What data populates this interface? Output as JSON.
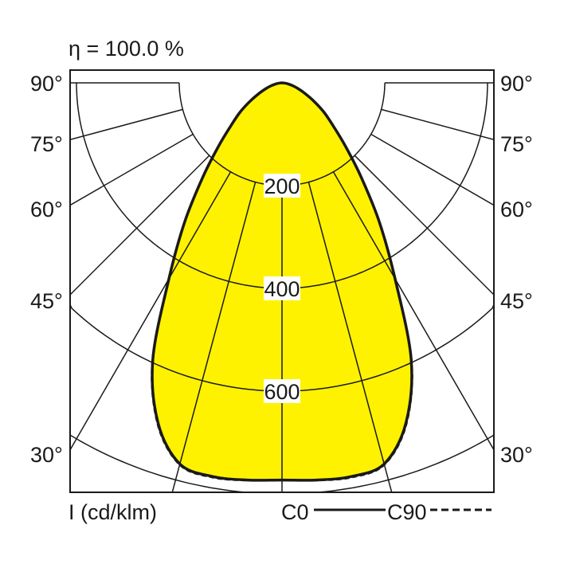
{
  "chart_data": {
    "type": "polar",
    "title": "η = 100.0 %",
    "unit_label": "I (cd/klm)",
    "radial_ticks": [
      200,
      400,
      600,
      800
    ],
    "radial_tick_labels": [
      "200",
      "400",
      "600"
    ],
    "angle_labels": [
      "30°",
      "45°",
      "60°",
      "75°",
      "90°"
    ],
    "angles": [
      0,
      5,
      10,
      15,
      20,
      25,
      30,
      35,
      40,
      45,
      50,
      55,
      60,
      65,
      70,
      75,
      80,
      85,
      90
    ],
    "series": [
      {
        "name": "C0",
        "style": "solid",
        "values": [
          773,
          776,
          778,
          768,
          705,
          595,
          440,
          330,
          240,
          175,
          130,
          100,
          72,
          50,
          34,
          22,
          12,
          5,
          0
        ]
      },
      {
        "name": "C90",
        "style": "dashed",
        "values": [
          773,
          777,
          780,
          770,
          708,
          598,
          442,
          332,
          241,
          176,
          130,
          100,
          72,
          50,
          34,
          22,
          12,
          5,
          0
        ]
      }
    ],
    "fill_color": "#FFF200",
    "line_color": "#1a1a1a"
  }
}
